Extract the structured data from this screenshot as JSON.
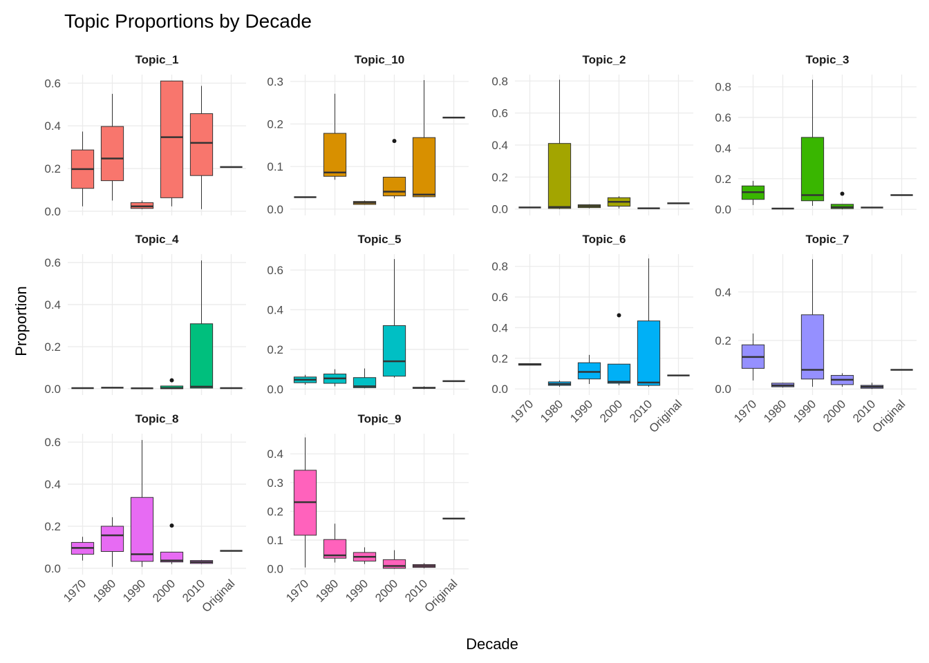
{
  "title": "Topic Proportions by Decade",
  "x_label": "Decade",
  "y_label": "Proportion",
  "chart_data": [
    {
      "type": "boxplot",
      "title": "Topic_1",
      "color": "#F8766D",
      "categories": [
        null,
        null,
        null,
        null,
        null,
        null
      ],
      "min": [
        0.023,
        0.05,
        0.01,
        0.023,
        0.01,
        0.207
      ],
      "q1": [
        0.107,
        0.143,
        0.013,
        0.063,
        0.167,
        0.207
      ],
      "median": [
        0.197,
        0.247,
        0.023,
        0.347,
        0.32,
        0.207
      ],
      "q3": [
        0.287,
        0.397,
        0.04,
        0.61,
        0.457,
        0.207
      ],
      "max": [
        0.373,
        0.55,
        0.05,
        0.61,
        0.587,
        0.207
      ],
      "outliers": [
        [],
        [],
        [],
        [],
        [],
        []
      ],
      "ylim": [
        -0.02,
        0.64
      ],
      "yticks": [
        {
          "value": 0,
          "label": "0.0"
        },
        0.2,
        0.4,
        0.6
      ],
      "grid": true
    },
    {
      "type": "boxplot",
      "title": "Topic_10",
      "color": "#D89000",
      "categories": [
        null,
        null,
        null,
        null,
        null,
        null
      ],
      "min": [
        0.028,
        0.069,
        0.01,
        0.025,
        0.028,
        0.215
      ],
      "q1": [
        0.028,
        0.077,
        0.011,
        0.031,
        0.029,
        0.215
      ],
      "median": [
        0.028,
        0.086,
        0.015,
        0.041,
        0.034,
        0.215
      ],
      "q3": [
        0.028,
        0.178,
        0.018,
        0.075,
        0.168,
        0.215
      ],
      "max": [
        0.028,
        0.271,
        0.02,
        0.075,
        0.303,
        0.215
      ],
      "outliers": [
        [],
        [],
        [],
        [
          0.16
        ],
        [],
        []
      ],
      "ylim": [
        -0.015,
        0.316
      ],
      "yticks": [
        {
          "value": 0,
          "label": "0.0"
        },
        0.1,
        0.2,
        0.3
      ],
      "grid": true
    },
    {
      "type": "boxplot",
      "title": "Topic_2",
      "color": "#A3A500",
      "categories": [
        null,
        null,
        null,
        null,
        null,
        null
      ],
      "min": [
        0.01,
        0,
        0.005,
        0.004,
        0.005,
        0.036
      ],
      "q1": [
        0.01,
        0.004,
        0.009,
        0.018,
        0.005,
        0.036
      ],
      "median": [
        0.01,
        0.013,
        0.018,
        0.045,
        0.005,
        0.036
      ],
      "q3": [
        0.01,
        0.41,
        0.027,
        0.071,
        0.005,
        0.036
      ],
      "max": [
        0.01,
        0.808,
        0.03,
        0.08,
        0.005,
        0.036
      ],
      "outliers": [
        [],
        [],
        [],
        [],
        [],
        []
      ],
      "ylim": [
        -0.04,
        0.84
      ],
      "yticks": [
        {
          "value": 0,
          "label": "0.0"
        },
        0.2,
        0.4,
        0.6,
        0.8
      ],
      "grid": true
    },
    {
      "type": "boxplot",
      "title": "Topic_3",
      "color": "#39B600",
      "categories": [
        null,
        null,
        null,
        null,
        null,
        null
      ],
      "min": [
        0.028,
        0.005,
        0.023,
        0,
        0.012,
        0.093
      ],
      "q1": [
        0.065,
        0.005,
        0.056,
        0.005,
        0.012,
        0.093
      ],
      "median": [
        0.112,
        0.005,
        0.093,
        0.014,
        0.012,
        0.093
      ],
      "q3": [
        0.153,
        0.005,
        0.47,
        0.033,
        0.012,
        0.093
      ],
      "max": [
        0.186,
        0.005,
        0.847,
        0.033,
        0.012,
        0.093
      ],
      "outliers": [
        [],
        [],
        [],
        [
          0.102
        ],
        [],
        []
      ],
      "ylim": [
        -0.04,
        0.88
      ],
      "yticks": [
        {
          "value": 0,
          "label": "0.0"
        },
        0.2,
        0.4,
        0.6,
        0.8
      ],
      "grid": true
    },
    {
      "type": "boxplot",
      "title": "Topic_4",
      "color": "#00BF7D",
      "categories": [
        null,
        null,
        null,
        null,
        null,
        null
      ],
      "min": [
        0.003,
        0.005,
        0.002,
        0,
        0.003,
        0.003
      ],
      "q1": [
        0.003,
        0.005,
        0.002,
        0,
        0.003,
        0.003
      ],
      "median": [
        0.003,
        0.005,
        0.002,
        0.003,
        0.01,
        0.003
      ],
      "q3": [
        0.003,
        0.005,
        0.002,
        0.013,
        0.309,
        0.003
      ],
      "max": [
        0.003,
        0.005,
        0.002,
        0.013,
        0.61,
        0.003
      ],
      "outliers": [
        [],
        [],
        [],
        [
          0.04
        ],
        [],
        []
      ],
      "ylim": [
        -0.03,
        0.64
      ],
      "yticks": [
        {
          "value": 0,
          "label": "0.0"
        },
        0.2,
        0.4,
        0.6
      ],
      "grid": true
    },
    {
      "type": "boxplot",
      "title": "Topic_5",
      "color": "#00BFC4",
      "categories": [
        null,
        null,
        null,
        null,
        null,
        null
      ],
      "min": [
        0.022,
        0.014,
        0.004,
        0.058,
        0,
        0.04
      ],
      "q1": [
        0.032,
        0.029,
        0.007,
        0.065,
        0.004,
        0.04
      ],
      "median": [
        0.047,
        0.054,
        0.014,
        0.14,
        0.006,
        0.04
      ],
      "q3": [
        0.061,
        0.076,
        0.058,
        0.32,
        0.009,
        0.04
      ],
      "max": [
        0.072,
        0.1,
        0.104,
        0.655,
        0.014,
        0.04
      ],
      "outliers": [
        [],
        [],
        [],
        [],
        [],
        []
      ],
      "ylim": [
        -0.03,
        0.68
      ],
      "yticks": [
        {
          "value": 0,
          "label": "0.0"
        },
        0.2,
        0.4,
        0.6
      ],
      "grid": true
    },
    {
      "type": "boxplot",
      "title": "Topic_6",
      "color": "#00B0F6",
      "categories": [
        "1970",
        "1980",
        "1990",
        "2000",
        "2010",
        "Original"
      ],
      "min": [
        0.155,
        0.014,
        0.032,
        0.023,
        0.014,
        0.088
      ],
      "q1": [
        0.155,
        0.023,
        0.065,
        0.037,
        0.023,
        0.088
      ],
      "median": [
        0.16,
        0.032,
        0.111,
        0.046,
        0.042,
        0.088
      ],
      "q3": [
        0.165,
        0.046,
        0.171,
        0.162,
        0.444,
        0.088
      ],
      "max": [
        0.165,
        0.056,
        0.222,
        0.162,
        0.852,
        0.088
      ],
      "outliers": [
        [],
        [],
        [],
        [
          0.481
        ],
        [],
        []
      ],
      "ylim": [
        -0.04,
        0.88
      ],
      "yticks": [
        {
          "value": 0,
          "label": "0.0"
        },
        0.2,
        0.4,
        0.6,
        0.8
      ],
      "grid": true
    },
    {
      "type": "boxplot",
      "title": "Topic_7",
      "color": "#9590FF",
      "categories": [
        "1970",
        "1980",
        "1990",
        "2000",
        "2010",
        "Original"
      ],
      "min": [
        0.035,
        0.006,
        0.009,
        0.009,
        0,
        0.079
      ],
      "q1": [
        0.085,
        0.009,
        0.041,
        0.018,
        0.003,
        0.079
      ],
      "median": [
        0.132,
        0.015,
        0.079,
        0.038,
        0.009,
        0.079
      ],
      "q3": [
        0.182,
        0.024,
        0.306,
        0.056,
        0.015,
        0.079
      ],
      "max": [
        0.229,
        0.026,
        0.535,
        0.065,
        0.026,
        0.079
      ],
      "outliers": [
        [],
        [],
        [],
        [],
        [],
        []
      ],
      "ylim": [
        -0.025,
        0.556
      ],
      "yticks": [
        {
          "value": 0,
          "label": "0.0"
        },
        0.2,
        0.4
      ],
      "grid": true
    },
    {
      "type": "boxplot",
      "title": "Topic_8",
      "color": "#E76BF3",
      "categories": [
        "1970",
        "1980",
        "1990",
        "2000",
        "2010",
        "Original"
      ],
      "min": [
        0.037,
        0.007,
        0.007,
        0.02,
        0.02,
        0.083
      ],
      "q1": [
        0.067,
        0.08,
        0.033,
        0.03,
        0.023,
        0.083
      ],
      "median": [
        0.097,
        0.157,
        0.067,
        0.037,
        0.03,
        0.083
      ],
      "q3": [
        0.123,
        0.2,
        0.337,
        0.077,
        0.037,
        0.083
      ],
      "max": [
        0.15,
        0.243,
        0.61,
        0.077,
        0.04,
        0.083
      ],
      "outliers": [
        [],
        [],
        [],
        [
          0.203
        ],
        [],
        []
      ],
      "ylim": [
        -0.03,
        0.64
      ],
      "yticks": [
        {
          "value": 0,
          "label": "0.0"
        },
        0.2,
        0.4,
        0.6
      ],
      "grid": true
    },
    {
      "type": "boxplot",
      "title": "Topic_9",
      "color": "#FF62BC",
      "categories": [
        "1970",
        "1980",
        "1990",
        "2000",
        "2010",
        "Original"
      ],
      "min": [
        0.005,
        0.022,
        0.017,
        0,
        0.002,
        0.175
      ],
      "q1": [
        0.117,
        0.037,
        0.027,
        0.002,
        0.005,
        0.175
      ],
      "median": [
        0.232,
        0.047,
        0.042,
        0.01,
        0.01,
        0.175
      ],
      "q3": [
        0.343,
        0.102,
        0.057,
        0.032,
        0.015,
        0.175
      ],
      "max": [
        0.457,
        0.157,
        0.075,
        0.065,
        0.02,
        0.175
      ],
      "outliers": [
        [],
        [],
        [],
        [],
        [],
        []
      ],
      "ylim": [
        -0.02,
        0.47
      ],
      "yticks": [
        {
          "value": 0,
          "label": "0.0"
        },
        0.1,
        0.2,
        0.3,
        0.4
      ],
      "grid": true
    }
  ]
}
